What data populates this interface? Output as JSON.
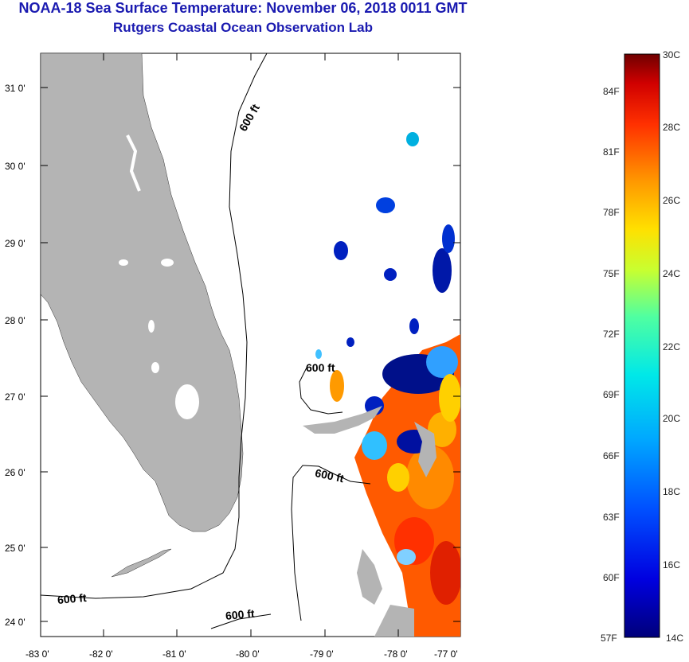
{
  "header": {
    "title": "NOAA-18 Sea Surface Temperature:  November 06, 2018 0011 GMT",
    "subtitle": "Rutgers Coastal Ocean Observation Lab"
  },
  "map": {
    "lon_labels": [
      "-83 0'",
      "-82 0'",
      "-81 0'",
      "-80 0'",
      "-79 0'",
      "-78 0'",
      "-77 0'"
    ],
    "lat_labels": [
      "31 0'",
      "30 0'",
      "29 0'",
      "28 0'",
      "27 0'",
      "26 0'",
      "25 0'",
      "24 0'"
    ],
    "isobath_label": "600 ft",
    "isobath_labels": [
      "600 ft",
      "600 ft",
      "600 ft",
      "600 ft",
      "600 ft"
    ],
    "land_color": "#b4b4b4"
  },
  "colorbar": {
    "celsius_labels": [
      "30C",
      "28C",
      "26C",
      "24C",
      "22C",
      "20C",
      "18C",
      "16C",
      "14C"
    ],
    "fahrenheit_labels": [
      "84F",
      "81F",
      "78F",
      "75F",
      "72F",
      "69F",
      "66F",
      "63F",
      "60F",
      "57F"
    ],
    "range_c": [
      14,
      30
    ],
    "colors": [
      "#000080",
      "#0000ff",
      "#0080ff",
      "#00e0ff",
      "#40ffc0",
      "#c0ff40",
      "#ffe000",
      "#ff8000",
      "#ff2000",
      "#800000"
    ]
  }
}
